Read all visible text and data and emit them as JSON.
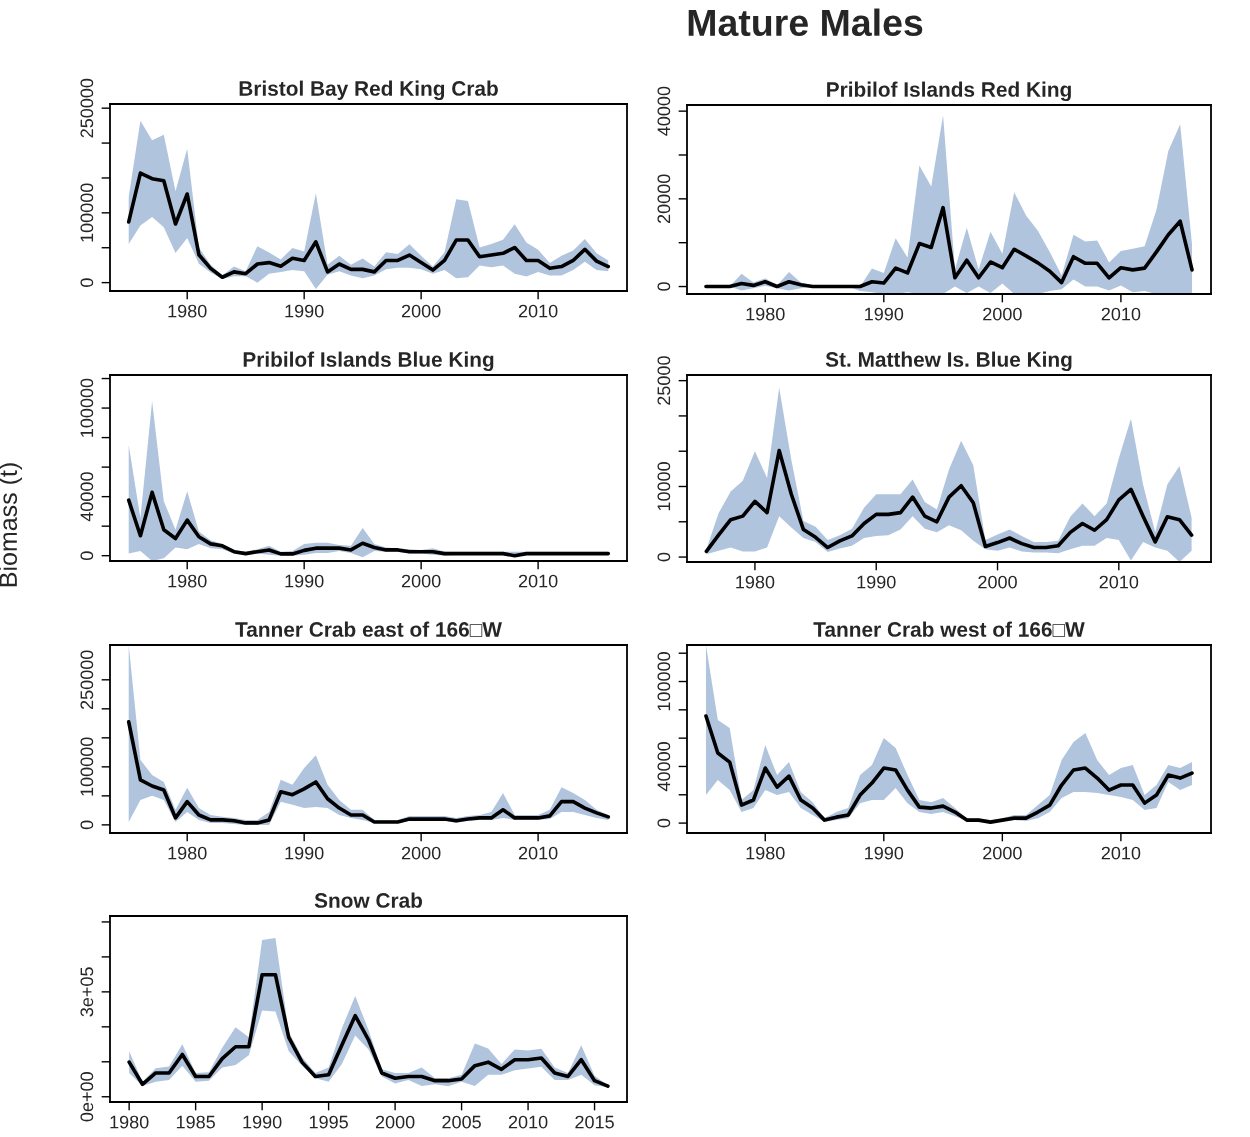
{
  "chart_data": [
    {
      "type": "line",
      "title": "Bristol Bay Red King Crab",
      "annotations": [
        "Mature Males"
      ],
      "x": [
        1975,
        1976,
        1977,
        1978,
        1979,
        1980,
        1981,
        1982,
        1983,
        1984,
        1985,
        1986,
        1987,
        1988,
        1989,
        1990,
        1991,
        1992,
        1993,
        1994,
        1995,
        1996,
        1997,
        1998,
        1999,
        2000,
        2001,
        2002,
        2003,
        2004,
        2005,
        2006,
        2007,
        2008,
        2009,
        2010,
        2011,
        2012,
        2013,
        2014,
        2015,
        2016
      ],
      "series": [
        {
          "color": "#000000",
          "values": [
            87000,
            157000,
            149000,
            146000,
            84000,
            127000,
            40000,
            20500,
            7700,
            15400,
            12800,
            26700,
            28700,
            23600,
            34900,
            31800,
            58500,
            15400,
            26700,
            19000,
            19000,
            15400,
            31800,
            31800,
            39500,
            28700,
            18000,
            31800,
            61000,
            61000,
            37000,
            39500,
            42000,
            50300,
            31800,
            31800,
            20500,
            23000,
            31800,
            47700,
            30800,
            23000
          ],
          "upper": [
            123000,
            232000,
            204000,
            212000,
            131000,
            192000,
            50300,
            25700,
            10300,
            23000,
            16400,
            52300,
            43000,
            33300,
            49800,
            44600,
            128000,
            25700,
            38500,
            25700,
            34400,
            23000,
            43600,
            41000,
            54900,
            38500,
            23000,
            43600,
            119500,
            117000,
            50300,
            55400,
            61600,
            83600,
            57500,
            47200,
            28200,
            38500,
            46200,
            62600,
            42000,
            31800
          ],
          "lower": [
            55400,
            82000,
            94000,
            79500,
            42600,
            64000,
            27200,
            14400,
            5100,
            9200,
            9200,
            0,
            12800,
            15400,
            18000,
            16400,
            -9200,
            11300,
            16400,
            10300,
            6200,
            10300,
            19000,
            21500,
            21500,
            19000,
            12800,
            18000,
            6200,
            7700,
            24600,
            22000,
            24600,
            12800,
            8700,
            15400,
            10300,
            10300,
            18000,
            29800,
            18000,
            16400
          ]
        }
      ],
      "xlim": [
        1973.4,
        2017.6
      ],
      "xticks": [
        1980,
        1990,
        2000,
        2010
      ],
      "ylim": [
        -12000,
        256000
      ],
      "yticks": [
        0,
        {
          "value": 50000,
          "label": null
        },
        100000,
        {
          "value": 150000,
          "label": null
        },
        {
          "value": 200000,
          "label": null
        },
        250000
      ]
    },
    {
      "type": "line",
      "title": "Pribilof Islands Red King",
      "x": [
        1975,
        1976,
        1977,
        1978,
        1979,
        1980,
        1981,
        1982,
        1983,
        1984,
        1985,
        1986,
        1987,
        1988,
        1989,
        1990,
        1991,
        1992,
        1993,
        1994,
        1995,
        1996,
        1997,
        1998,
        1999,
        2000,
        2001,
        2002,
        2003,
        2004,
        2005,
        2006,
        2007,
        2008,
        2009,
        2010,
        2011,
        2012,
        2013,
        2014,
        2015,
        2016
      ],
      "series": [
        {
          "color": "#000000",
          "values": [
            0,
            0,
            0,
            700,
            260,
            1100,
            0,
            1100,
            400,
            0,
            0,
            0,
            0,
            0,
            1100,
            800,
            4200,
            3100,
            9800,
            8900,
            18000,
            2000,
            6000,
            2000,
            5600,
            4300,
            8500,
            7000,
            5400,
            3500,
            900,
            6800,
            5300,
            5300,
            2000,
            4300,
            3800,
            4200,
            7900,
            11800,
            14900,
            3800
          ],
          "upper": [
            0,
            0,
            0,
            2900,
            900,
            1900,
            260,
            3300,
            900,
            180,
            0,
            0,
            0,
            0,
            4100,
            3100,
            11000,
            6600,
            27600,
            22800,
            39000,
            3900,
            13400,
            3900,
            12500,
            7500,
            21500,
            16200,
            12700,
            7900,
            2500,
            11800,
            10300,
            10500,
            5500,
            8100,
            8600,
            9200,
            17500,
            30900,
            37000,
            9600
          ],
          "lower": [
            0,
            0,
            0,
            -900,
            -400,
            200,
            -400,
            -900,
            -400,
            0,
            0,
            0,
            0,
            -1000,
            -1300,
            -1700,
            -1700,
            -1300,
            -1700,
            -1700,
            -1700,
            0,
            -1500,
            0,
            -1500,
            700,
            -1700,
            -1700,
            -1700,
            -1000,
            -600,
            1600,
            0,
            0,
            -900,
            260,
            -1300,
            -1000,
            -1700,
            -1700,
            -1700,
            -1700
          ]
        }
      ],
      "xlim": [
        1973.4,
        2017.6
      ],
      "xticks": [
        1980,
        1990,
        2000,
        2010
      ],
      "ylim": [
        -1700,
        41400
      ],
      "yticks": [
        0,
        {
          "value": 10000,
          "label": null
        },
        20000,
        {
          "value": 30000,
          "label": null
        },
        40000
      ]
    },
    {
      "type": "line",
      "title": "Pribilof Islands Blue King",
      "ylabel": "Biomass (t)",
      "x": [
        1975,
        1976,
        1977,
        1978,
        1979,
        1980,
        1981,
        1982,
        1983,
        1984,
        1985,
        1986,
        1987,
        1988,
        1989,
        1990,
        1991,
        1992,
        1993,
        1994,
        1995,
        1996,
        1997,
        1998,
        1999,
        2000,
        2001,
        2002,
        2003,
        2004,
        2005,
        2006,
        2007,
        2008,
        2009,
        2010,
        2011,
        2012,
        2013,
        2014,
        2015,
        2016
      ],
      "series": [
        {
          "color": "#000000",
          "values": [
            37600,
            13500,
            42900,
            17600,
            11600,
            24100,
            12800,
            8000,
            6700,
            2700,
            1400,
            2700,
            3900,
            1200,
            1200,
            3600,
            5100,
            5100,
            5100,
            3900,
            8400,
            5500,
            3900,
            3900,
            2700,
            2700,
            2700,
            1400,
            1400,
            1400,
            1400,
            1400,
            1400,
            0,
            1400,
            1400,
            1400,
            1400,
            1400,
            1400,
            1400,
            1400
          ],
          "upper": [
            75000,
            25500,
            104800,
            36900,
            17600,
            43600,
            16400,
            10400,
            8000,
            3900,
            2700,
            4300,
            6700,
            2700,
            3100,
            8000,
            8700,
            8700,
            7200,
            6700,
            18800,
            8000,
            5500,
            5100,
            4300,
            3900,
            5100,
            2700,
            2700,
            2700,
            2700,
            2700,
            2700,
            2700,
            2700,
            2700,
            2700,
            2700,
            2700,
            2700,
            2700,
            2700
          ],
          "lower": [
            1400,
            3100,
            -3600,
            -1700,
            5500,
            4300,
            8000,
            5100,
            4300,
            1400,
            700,
            1400,
            700,
            0,
            0,
            700,
            1900,
            1900,
            3100,
            1900,
            -1000,
            3100,
            2700,
            2700,
            1400,
            1400,
            700,
            0,
            700,
            700,
            700,
            700,
            700,
            -700,
            700,
            700,
            700,
            700,
            700,
            700,
            700,
            700
          ]
        }
      ],
      "xlim": [
        1973.4,
        2017.6
      ],
      "xticks": [
        1980,
        1990,
        2000,
        2010
      ],
      "ylim": [
        -3600,
        122400
      ],
      "yticks": [
        0,
        {
          "value": 20000,
          "label": null
        },
        40000,
        {
          "value": 60000,
          "label": null
        },
        {
          "value": 80000,
          "label": null
        },
        100000,
        {
          "value": 120000,
          "label": null
        }
      ]
    },
    {
      "type": "line",
      "title": "St. Matthew Is. Blue King",
      "x": [
        1976,
        1977,
        1978,
        1979,
        1980,
        1981,
        1982,
        1983,
        1984,
        1985,
        1986,
        1987,
        1988,
        1989,
        1990,
        1991,
        1992,
        1993,
        1994,
        1995,
        1996,
        1997,
        1998,
        1999,
        2000,
        2001,
        2002,
        2003,
        2004,
        2005,
        2006,
        2007,
        2008,
        2009,
        2010,
        2011,
        2012,
        2013,
        2014,
        2015,
        2016
      ],
      "series": [
        {
          "color": "#000000",
          "values": [
            800,
            3100,
            5300,
            5800,
            7900,
            6300,
            15100,
            8900,
            3900,
            2800,
            1350,
            2300,
            3000,
            4750,
            6050,
            6050,
            6300,
            8500,
            5800,
            5000,
            8500,
            10100,
            7700,
            1500,
            2050,
            2700,
            1900,
            1350,
            1350,
            1600,
            3500,
            4750,
            3800,
            5300,
            8100,
            9600,
            5800,
            2150,
            5700,
            5300,
            3100
          ],
          "upper": [
            1100,
            6200,
            9300,
            10800,
            15000,
            11200,
            24000,
            13800,
            5100,
            4300,
            2400,
            3100,
            4000,
            7000,
            8900,
            8900,
            8900,
            11000,
            7800,
            6750,
            12400,
            16500,
            13000,
            2400,
            3200,
            3900,
            3000,
            2150,
            2150,
            2300,
            5700,
            7600,
            5800,
            7600,
            14000,
            19600,
            10300,
            3500,
            10300,
            12900,
            5600
          ],
          "lower": [
            400,
            900,
            1350,
            800,
            800,
            1350,
            5800,
            4200,
            2700,
            2150,
            700,
            1200,
            1600,
            2700,
            3000,
            3100,
            3900,
            5800,
            4000,
            3500,
            4500,
            3800,
            2300,
            1100,
            900,
            1350,
            800,
            650,
            650,
            550,
            1100,
            1600,
            1600,
            2700,
            2400,
            -500,
            2150,
            1350,
            900,
            -700,
            900
          ]
        }
      ],
      "xlim": [
        1974.4,
        2017.6
      ],
      "xticks": [
        1980,
        1990,
        2000,
        2010
      ],
      "ylim": [
        -700,
        25800
      ],
      "yticks": [
        0,
        {
          "value": 5000,
          "label": null
        },
        10000,
        {
          "value": 15000,
          "label": null
        },
        {
          "value": 20000,
          "label": null
        },
        25000
      ]
    },
    {
      "type": "line",
      "title": "Tanner Crab east of 166□W",
      "x": [
        1975,
        1976,
        1977,
        1978,
        1979,
        1980,
        1981,
        1982,
        1983,
        1984,
        1985,
        1986,
        1987,
        1988,
        1989,
        1990,
        1991,
        1992,
        1993,
        1994,
        1995,
        1996,
        1997,
        1998,
        1999,
        2000,
        2001,
        2002,
        2003,
        2004,
        2005,
        2006,
        2007,
        2008,
        2009,
        2010,
        2011,
        2012,
        2013,
        2014,
        2015,
        2016
      ],
      "series": [
        {
          "color": "#000000",
          "values": [
            177600,
            77600,
            67000,
            60000,
            12000,
            40000,
            17000,
            8600,
            8600,
            7000,
            3400,
            3400,
            8600,
            57000,
            52000,
            62000,
            74000,
            45000,
            29000,
            17000,
            17000,
            5000,
            5000,
            5000,
            10000,
            10000,
            10000,
            10000,
            7000,
            10000,
            12000,
            12000,
            26000,
            12000,
            12000,
            12000,
            15500,
            40000,
            40000,
            29000,
            20700,
            13800
          ],
          "upper": [
            310000,
            112000,
            86000,
            74000,
            26000,
            64000,
            29000,
            17000,
            13800,
            12000,
            8600,
            8600,
            22400,
            77600,
            69000,
            98000,
            120000,
            69000,
            43000,
            26000,
            26000,
            8600,
            8600,
            8600,
            15500,
            15500,
            15500,
            15500,
            12000,
            15500,
            17000,
            22400,
            55000,
            17000,
            17000,
            17000,
            26000,
            65000,
            55000,
            43000,
            26000,
            17000
          ],
          "lower": [
            5000,
            43000,
            50000,
            43000,
            5000,
            22400,
            8600,
            3400,
            3400,
            1700,
            0,
            0,
            0,
            40000,
            34500,
            29000,
            31000,
            29000,
            17000,
            12000,
            8600,
            3400,
            3400,
            3400,
            7000,
            7000,
            7000,
            7000,
            3400,
            7000,
            8600,
            8600,
            12000,
            8600,
            8600,
            8600,
            10000,
            22400,
            22400,
            17000,
            12000,
            8600
          ]
        }
      ],
      "xlim": [
        1973.4,
        2017.6
      ],
      "xticks": [
        1980,
        1990,
        2000,
        2010
      ],
      "ylim": [
        -14000,
        310000
      ],
      "yticks": [
        0,
        {
          "value": 50000,
          "label": null
        },
        100000,
        {
          "value": 150000,
          "label": null
        },
        {
          "value": 200000,
          "label": null
        },
        250000
      ]
    },
    {
      "type": "line",
      "title": "Tanner Crab west of 166□W",
      "x": [
        1975,
        1976,
        1977,
        1978,
        1979,
        1980,
        1981,
        1982,
        1983,
        1984,
        1985,
        1986,
        1987,
        1988,
        1989,
        1990,
        1991,
        1992,
        1993,
        1994,
        1995,
        1996,
        1997,
        1998,
        1999,
        2000,
        2001,
        2002,
        2003,
        2004,
        2005,
        2006,
        2007,
        2008,
        2009,
        2010,
        2011,
        2012,
        2013,
        2014,
        2015,
        2016
      ],
      "series": [
        {
          "color": "#000000",
          "values": [
            75600,
            49500,
            43100,
            12700,
            16300,
            38900,
            25400,
            33200,
            16300,
            10600,
            2100,
            4200,
            5700,
            19800,
            28300,
            38900,
            37500,
            23300,
            11300,
            10600,
            12000,
            7800,
            2100,
            2100,
            700,
            2100,
            3500,
            3500,
            7800,
            12700,
            26900,
            37500,
            38900,
            31800,
            23300,
            26900,
            26900,
            14100,
            19800,
            33900,
            31800,
            35300
          ],
          "upper": [
            125800,
            72800,
            67100,
            16300,
            23300,
            55100,
            33900,
            43100,
            21900,
            14800,
            3500,
            7800,
            10600,
            33900,
            41000,
            60100,
            53000,
            33900,
            16300,
            14800,
            17700,
            10600,
            3500,
            3500,
            2100,
            3500,
            5700,
            5700,
            12700,
            19800,
            44500,
            57200,
            63600,
            44500,
            33900,
            38900,
            41000,
            19800,
            26900,
            41000,
            38900,
            43100
          ],
          "lower": [
            19800,
            30400,
            23300,
            7800,
            10600,
            23300,
            19800,
            21900,
            10600,
            5700,
            700,
            2100,
            3500,
            14100,
            16300,
            16300,
            24700,
            14100,
            7800,
            6400,
            7800,
            4900,
            1400,
            1400,
            0,
            1400,
            2100,
            1400,
            3500,
            7800,
            17700,
            21900,
            21900,
            21200,
            19800,
            18400,
            16300,
            9200,
            10600,
            29000,
            23300,
            26900
          ]
        }
      ],
      "xlim": [
        1973.4,
        2017.6
      ],
      "xticks": [
        1980,
        1990,
        2000,
        2010
      ],
      "ylim": [
        -7000,
        125800
      ],
      "yticks": [
        0,
        {
          "value": 20000,
          "label": null
        },
        40000,
        {
          "value": 60000,
          "label": null
        },
        {
          "value": 80000,
          "label": null
        },
        100000,
        {
          "value": 120000,
          "label": null
        }
      ]
    },
    {
      "type": "line",
      "title": "Snow Crab",
      "x": [
        1980,
        1981,
        1982,
        1983,
        1984,
        1985,
        1986,
        1987,
        1988,
        1989,
        1990,
        1991,
        1992,
        1993,
        1994,
        1995,
        1996,
        1997,
        1998,
        1999,
        2000,
        2001,
        2002,
        2003,
        2004,
        2005,
        2006,
        2007,
        2008,
        2009,
        2010,
        2011,
        2012,
        2013,
        2014,
        2015,
        2016
      ],
      "series": [
        {
          "color": "#000000",
          "values": [
            99000,
            35700,
            68000,
            68000,
            121000,
            58000,
            58000,
            109000,
            143000,
            143000,
            349000,
            349000,
            170000,
            99000,
            58000,
            63000,
            148000,
            232000,
            163000,
            68000,
            53000,
            58000,
            58000,
            46000,
            46000,
            51000,
            89000,
            99000,
            78500,
            106000,
            106000,
            111000,
            68000,
            58000,
            106000,
            46000,
            30600
          ],
          "upper": [
            130000,
            43000,
            81600,
            86700,
            150000,
            68000,
            70000,
            140000,
            199000,
            170000,
            448000,
            454000,
            186000,
            114000,
            68000,
            84000,
            196000,
            288000,
            191000,
            78500,
            68000,
            68000,
            84000,
            53000,
            53000,
            63000,
            152000,
            138000,
            94000,
            135000,
            132000,
            137000,
            84000,
            68000,
            147000,
            60000,
            32600
          ],
          "lower": [
            68000,
            30600,
            43000,
            48000,
            89000,
            43000,
            46000,
            84000,
            91000,
            119000,
            247000,
            244000,
            130000,
            89000,
            53000,
            43000,
            94000,
            175000,
            135000,
            58000,
            38000,
            48000,
            30600,
            35700,
            30000,
            43000,
            30600,
            63000,
            63000,
            75500,
            80600,
            86000,
            48000,
            48000,
            63000,
            32600,
            27500
          ]
        }
      ],
      "xlim": [
        1978.56,
        2017.44
      ],
      "xticks": [
        1980,
        1985,
        1990,
        1995,
        2000,
        2005,
        2010,
        2015
      ],
      "ylim": [
        -15000,
        517000
      ],
      "yticks": [
        {
          "value": 0,
          "label": "0e+00"
        },
        {
          "value": 100000,
          "label": null
        },
        {
          "value": 200000,
          "label": null
        },
        {
          "value": 300000,
          "label": "3e+05"
        },
        {
          "value": 400000,
          "label": null
        },
        {
          "value": 500000,
          "label": null
        }
      ]
    }
  ]
}
